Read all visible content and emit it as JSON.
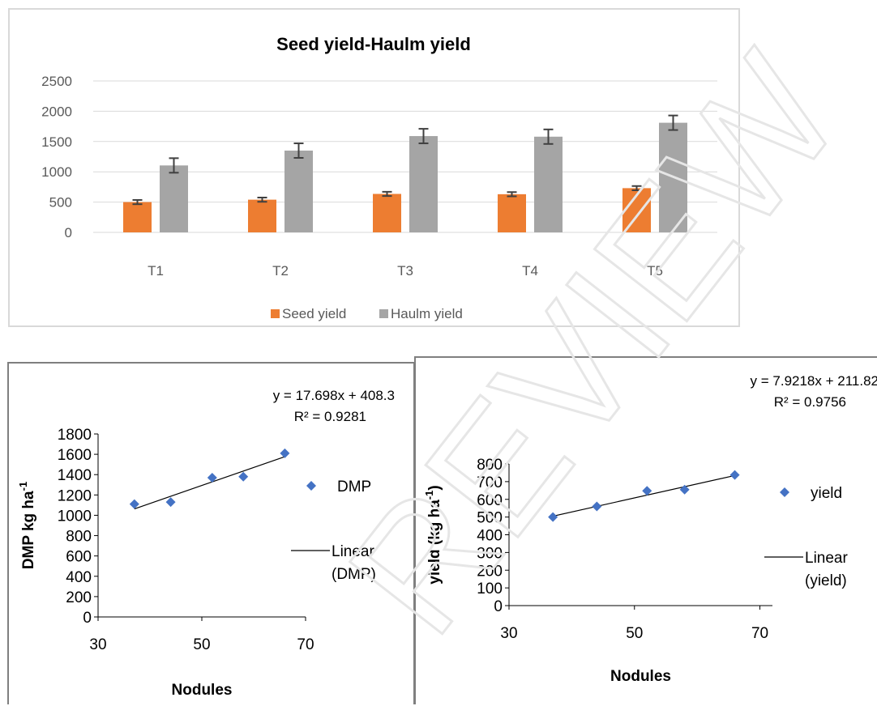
{
  "chart_data": [
    {
      "type": "bar",
      "title": "Seed yield-Haulm yield",
      "categories": [
        "T1",
        "T2",
        "T3",
        "T4",
        "T5"
      ],
      "series": [
        {
          "name": "Seed yield",
          "values": [
            500,
            540,
            635,
            630,
            730
          ],
          "errors": [
            35,
            35,
            35,
            35,
            35
          ],
          "color": "#ed7d31"
        },
        {
          "name": "Haulm yield",
          "values": [
            1105,
            1350,
            1590,
            1580,
            1810
          ],
          "errors": [
            120,
            120,
            120,
            120,
            120
          ],
          "color": "#a5a5a5"
        }
      ],
      "ylim": [
        0,
        2500
      ],
      "yticks": [
        "0",
        "500",
        "1000",
        "1500",
        "2000",
        "2500"
      ],
      "grid": true,
      "legend_position": "bottom"
    },
    {
      "type": "scatter",
      "xlabel": "Nodules",
      "ylabel": "DMP kg ha",
      "ylabel_superscript": "-1",
      "xlim": [
        30,
        70
      ],
      "ylim": [
        0,
        1800
      ],
      "xticks": [
        "30",
        "50",
        "70"
      ],
      "yticks": [
        "0",
        "200",
        "400",
        "600",
        "800",
        "1000",
        "1200",
        "1400",
        "1600",
        "1800"
      ],
      "series": [
        {
          "name": "DMP",
          "x": [
            37,
            44,
            52,
            58,
            66
          ],
          "y": [
            1110,
            1130,
            1370,
            1380,
            1610
          ],
          "color": "#4472c4",
          "marker": "diamond"
        }
      ],
      "trendline": {
        "name": "Linear (DMP)",
        "slope": 17.698,
        "intercept": 408.3,
        "equation": "y = 17.698x + 408.3",
        "r2": "R² = 0.9281"
      }
    },
    {
      "type": "scatter",
      "xlabel": "Nodules",
      "ylabel": "yield (kg ha",
      "ylabel_superscript": "-1",
      "ylabel_suffix": ")",
      "xlim": [
        30,
        72
      ],
      "ylim": [
        0,
        800
      ],
      "xticks": [
        "30",
        "50",
        "70"
      ],
      "yticks": [
        "0",
        "100",
        "200",
        "300",
        "400",
        "500",
        "600",
        "700",
        "800"
      ],
      "series": [
        {
          "name": "yield",
          "x": [
            37,
            44,
            52,
            58,
            66
          ],
          "y": [
            500,
            560,
            648,
            655,
            738
          ],
          "color": "#4472c4",
          "marker": "diamond"
        }
      ],
      "trendline": {
        "name": "Linear (yield)",
        "slope": 7.9218,
        "intercept": 211.82,
        "equation": "y = 7.9218x + 211.82",
        "r2": "R² = 0.9756"
      }
    }
  ],
  "watermark": "REVIEW"
}
